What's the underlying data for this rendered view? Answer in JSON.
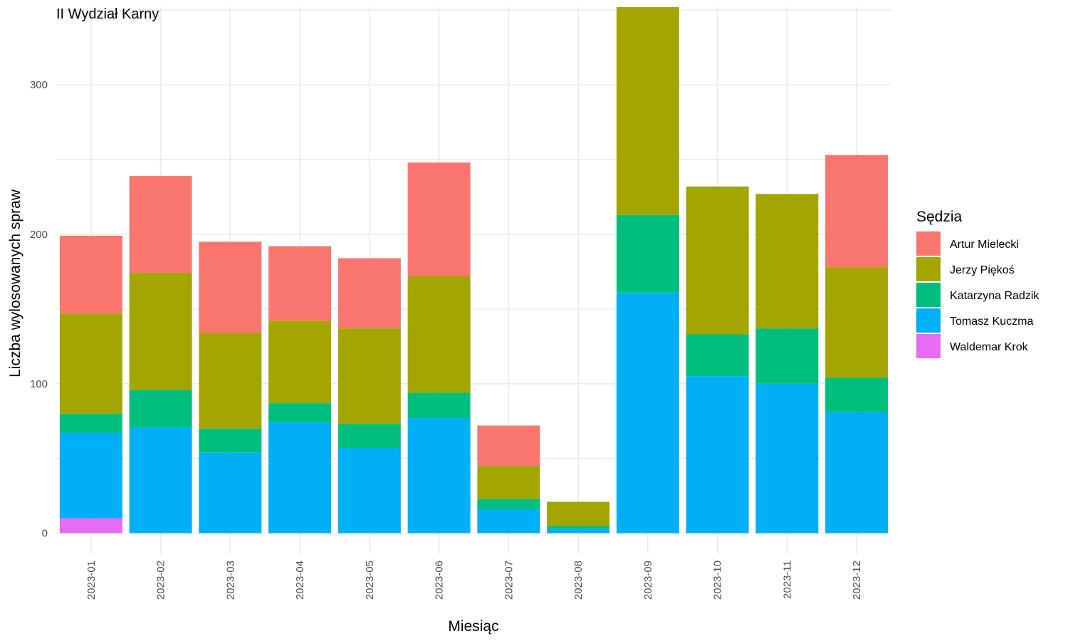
{
  "chart_data": {
    "type": "bar",
    "stacked": true,
    "title": "II Wydział Karny",
    "xlabel": "Miesiąc",
    "ylabel": "Liczba wylosowanych spraw",
    "ylim": [
      -14,
      352
    ],
    "yticks": [
      0,
      100,
      200,
      300
    ],
    "grid": true,
    "legend": {
      "title": "Sędzia",
      "position": "right"
    },
    "categories": [
      "2023-01",
      "2023-02",
      "2023-03",
      "2023-04",
      "2023-05",
      "2023-06",
      "2023-07",
      "2023-08",
      "2023-09",
      "2023-10",
      "2023-11",
      "2023-12"
    ],
    "series": [
      {
        "name": "Waldemar Krok",
        "color": "#E76BF3",
        "values": [
          10,
          0,
          0,
          0,
          0,
          0,
          0,
          0,
          0,
          0,
          0,
          0
        ]
      },
      {
        "name": "Tomasz Kuczma",
        "color": "#00B0F6",
        "values": [
          57,
          71,
          54,
          74,
          57,
          77,
          16,
          3,
          161,
          105,
          100,
          81
        ]
      },
      {
        "name": "Katarzyna Radzik",
        "color": "#00BF7D",
        "values": [
          13,
          25,
          16,
          13,
          16,
          17,
          7,
          2,
          52,
          28,
          37,
          23
        ]
      },
      {
        "name": "Jerzy Piękoś",
        "color": "#A3A500",
        "values": [
          67,
          78,
          64,
          55,
          64,
          78,
          22,
          16,
          139,
          99,
          90,
          74
        ]
      },
      {
        "name": "Artur Mielecki",
        "color": "#F8766D",
        "values": [
          52,
          65,
          61,
          50,
          47,
          76,
          27,
          0,
          0,
          0,
          0,
          75
        ]
      }
    ],
    "legend_order": [
      "Artur Mielecki",
      "Jerzy Piękoś",
      "Katarzyna Radzik",
      "Tomasz Kuczma",
      "Waldemar Krok"
    ]
  }
}
